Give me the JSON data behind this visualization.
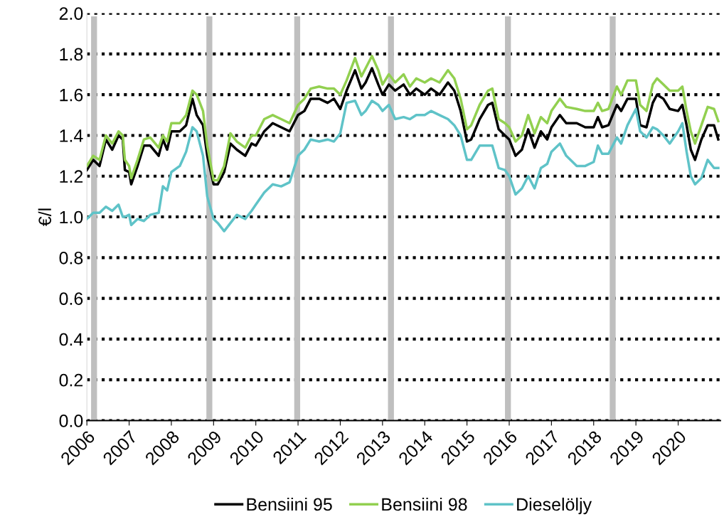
{
  "chart_data": {
    "type": "line",
    "ylabel": "€/l",
    "x": [
      2006.0,
      2006.15,
      2006.3,
      2006.45,
      2006.6,
      2006.75,
      2006.85,
      2006.9,
      2007.0,
      2007.05,
      2007.2,
      2007.35,
      2007.5,
      2007.7,
      2007.8,
      2007.9,
      2008.0,
      2008.2,
      2008.35,
      2008.5,
      2008.6,
      2008.75,
      2008.85,
      2009.0,
      2009.1,
      2009.25,
      2009.4,
      2009.55,
      2009.75,
      2009.9,
      2010.0,
      2010.2,
      2010.4,
      2010.6,
      2010.8,
      2011.0,
      2011.15,
      2011.3,
      2011.5,
      2011.7,
      2011.85,
      2012.0,
      2012.15,
      2012.35,
      2012.5,
      2012.6,
      2012.75,
      2012.9,
      2013.0,
      2013.15,
      2013.3,
      2013.5,
      2013.65,
      2013.8,
      2014.0,
      2014.15,
      2014.35,
      2014.55,
      2014.7,
      2014.85,
      2015.0,
      2015.1,
      2015.3,
      2015.5,
      2015.6,
      2015.75,
      2015.9,
      2016.0,
      2016.15,
      2016.3,
      2016.45,
      2016.6,
      2016.75,
      2016.9,
      2017.0,
      2017.2,
      2017.35,
      2017.6,
      2017.8,
      2018.0,
      2018.1,
      2018.2,
      2018.35,
      2018.55,
      2018.65,
      2018.8,
      2019.0,
      2019.1,
      2019.25,
      2019.4,
      2019.5,
      2019.65,
      2019.8,
      2020.0,
      2020.1,
      2020.2,
      2020.3,
      2020.4,
      2020.55,
      2020.7,
      2020.85,
      2020.95
    ],
    "series": [
      {
        "name": "Bensiini 95",
        "color": "#000000",
        "values": [
          1.23,
          1.28,
          1.25,
          1.38,
          1.33,
          1.4,
          1.38,
          1.23,
          1.22,
          1.16,
          1.25,
          1.35,
          1.35,
          1.3,
          1.38,
          1.33,
          1.42,
          1.42,
          1.45,
          1.58,
          1.5,
          1.45,
          1.3,
          1.16,
          1.16,
          1.22,
          1.36,
          1.33,
          1.3,
          1.36,
          1.35,
          1.42,
          1.46,
          1.44,
          1.42,
          1.5,
          1.52,
          1.58,
          1.58,
          1.56,
          1.58,
          1.53,
          1.62,
          1.72,
          1.63,
          1.66,
          1.73,
          1.65,
          1.6,
          1.65,
          1.62,
          1.65,
          1.6,
          1.63,
          1.6,
          1.63,
          1.6,
          1.66,
          1.62,
          1.52,
          1.37,
          1.38,
          1.48,
          1.55,
          1.56,
          1.43,
          1.4,
          1.38,
          1.3,
          1.33,
          1.43,
          1.34,
          1.42,
          1.38,
          1.44,
          1.5,
          1.46,
          1.46,
          1.44,
          1.44,
          1.49,
          1.44,
          1.45,
          1.55,
          1.52,
          1.58,
          1.58,
          1.45,
          1.44,
          1.56,
          1.6,
          1.58,
          1.53,
          1.52,
          1.55,
          1.45,
          1.33,
          1.28,
          1.38,
          1.45,
          1.45,
          1.38
        ]
      },
      {
        "name": "Bensiini 98",
        "color": "#92d050",
        "values": [
          1.25,
          1.3,
          1.28,
          1.4,
          1.36,
          1.42,
          1.4,
          1.28,
          1.25,
          1.19,
          1.28,
          1.38,
          1.39,
          1.34,
          1.4,
          1.37,
          1.46,
          1.46,
          1.5,
          1.62,
          1.6,
          1.52,
          1.35,
          1.18,
          1.18,
          1.25,
          1.41,
          1.37,
          1.34,
          1.4,
          1.4,
          1.48,
          1.5,
          1.48,
          1.46,
          1.55,
          1.58,
          1.63,
          1.64,
          1.63,
          1.63,
          1.6,
          1.67,
          1.78,
          1.69,
          1.73,
          1.79,
          1.72,
          1.65,
          1.7,
          1.66,
          1.7,
          1.64,
          1.68,
          1.66,
          1.68,
          1.66,
          1.72,
          1.68,
          1.58,
          1.43,
          1.45,
          1.55,
          1.62,
          1.63,
          1.48,
          1.46,
          1.44,
          1.37,
          1.4,
          1.5,
          1.41,
          1.49,
          1.46,
          1.52,
          1.58,
          1.54,
          1.53,
          1.52,
          1.52,
          1.56,
          1.52,
          1.53,
          1.64,
          1.6,
          1.67,
          1.67,
          1.55,
          1.52,
          1.65,
          1.68,
          1.65,
          1.62,
          1.62,
          1.64,
          1.52,
          1.42,
          1.36,
          1.45,
          1.54,
          1.53,
          1.47
        ]
      },
      {
        "name": "Dieselöljy",
        "color": "#5fc3c8",
        "values": [
          0.99,
          1.02,
          1.02,
          1.05,
          1.03,
          1.06,
          1.0,
          1.0,
          1.01,
          0.96,
          0.99,
          0.98,
          1.01,
          1.02,
          1.15,
          1.13,
          1.22,
          1.25,
          1.32,
          1.44,
          1.42,
          1.3,
          1.1,
          0.99,
          0.97,
          0.93,
          0.97,
          1.01,
          0.99,
          1.03,
          1.06,
          1.12,
          1.16,
          1.15,
          1.17,
          1.3,
          1.33,
          1.38,
          1.37,
          1.38,
          1.37,
          1.41,
          1.56,
          1.57,
          1.5,
          1.52,
          1.57,
          1.55,
          1.52,
          1.55,
          1.48,
          1.49,
          1.48,
          1.5,
          1.5,
          1.52,
          1.5,
          1.48,
          1.45,
          1.4,
          1.28,
          1.28,
          1.35,
          1.35,
          1.35,
          1.24,
          1.23,
          1.2,
          1.11,
          1.14,
          1.2,
          1.14,
          1.24,
          1.26,
          1.32,
          1.36,
          1.3,
          1.25,
          1.25,
          1.27,
          1.35,
          1.31,
          1.31,
          1.39,
          1.36,
          1.45,
          1.53,
          1.42,
          1.39,
          1.44,
          1.43,
          1.4,
          1.36,
          1.42,
          1.46,
          1.32,
          1.2,
          1.16,
          1.19,
          1.28,
          1.24,
          1.24
        ]
      }
    ],
    "xlim": [
      2006,
      2021
    ],
    "xticks": [
      2006,
      2007,
      2008,
      2009,
      2010,
      2011,
      2012,
      2013,
      2014,
      2015,
      2016,
      2017,
      2018,
      2019,
      2020
    ],
    "ylim": [
      0,
      2.0
    ],
    "yticks": [
      {
        "value": 0,
        "label": "0.0"
      },
      {
        "value": 0.2,
        "label": "0.2"
      },
      {
        "value": 0.4,
        "label": "0.4"
      },
      {
        "value": 0.6,
        "label": "0.6"
      },
      {
        "value": 0.8,
        "label": "0.8"
      },
      {
        "value": 1.0,
        "label": "1.0"
      },
      {
        "value": 1.2,
        "label": "1.2"
      },
      {
        "value": 1.4,
        "label": "1.4"
      },
      {
        "value": 1.6,
        "label": "1.6"
      },
      {
        "value": 1.8,
        "label": "1.8"
      },
      {
        "value": 2.0,
        "label": "2.0"
      }
    ],
    "ref_lines": [
      {
        "axis": "x",
        "value": 2006.17,
        "color": "#bfbfbf"
      },
      {
        "axis": "x",
        "value": 2008.9,
        "color": "#bfbfbf"
      },
      {
        "axis": "x",
        "value": 2010.98,
        "color": "#bfbfbf"
      },
      {
        "axis": "x",
        "value": 2013.2,
        "color": "#bfbfbf"
      },
      {
        "axis": "x",
        "value": 2015.97,
        "color": "#bfbfbf"
      },
      {
        "axis": "x",
        "value": 2018.45,
        "color": "#bfbfbf"
      }
    ],
    "grid": "y",
    "legend": "bottom",
    "line_style": "solid",
    "marker": "none"
  }
}
